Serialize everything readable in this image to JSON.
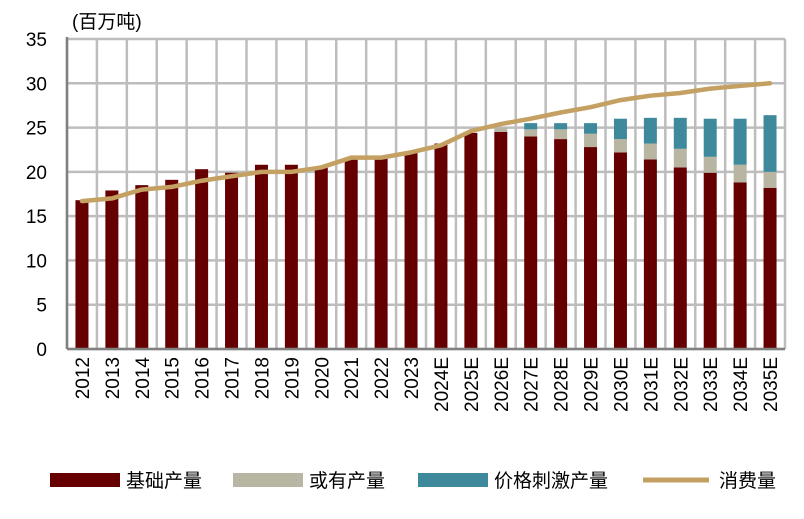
{
  "chart_data": {
    "type": "bar",
    "stacked": true,
    "unit_label": "(百万吨)",
    "categories": [
      "2012",
      "2013",
      "2014",
      "2015",
      "2016",
      "2017",
      "2018",
      "2019",
      "2020",
      "2021",
      "2022",
      "2023",
      "2024E",
      "2025E",
      "2026E",
      "2027E",
      "2028E",
      "2029E",
      "2030E",
      "2031E",
      "2032E",
      "2033E",
      "2034E",
      "2035E"
    ],
    "ylim": [
      0,
      35
    ],
    "yticks": [
      "0",
      "5",
      "10",
      "15",
      "20",
      "25",
      "30",
      "35"
    ],
    "grid": true,
    "legend_position": "bottom",
    "series": [
      {
        "name": "基础产量",
        "kind": "bar",
        "color": "#660000",
        "values": [
          16.8,
          17.9,
          18.5,
          19.1,
          20.3,
          19.9,
          20.8,
          20.8,
          20.6,
          21.5,
          21.5,
          22.2,
          23.2,
          24.4,
          24.5,
          24.0,
          23.7,
          22.8,
          22.2,
          21.4,
          20.5,
          19.9,
          18.8,
          18.2
        ]
      },
      {
        "name": "或有产量",
        "kind": "bar",
        "color": "#b8b5a2",
        "values": [
          0,
          0,
          0,
          0,
          0,
          0,
          0,
          0,
          0,
          0,
          0,
          0,
          0,
          0,
          0.5,
          0.8,
          1.1,
          1.5,
          1.5,
          1.8,
          2.1,
          1.8,
          2.0,
          1.8
        ]
      },
      {
        "name": "价格刺激产量",
        "kind": "bar",
        "color": "#3e8a9c",
        "values": [
          0,
          0,
          0,
          0,
          0,
          0,
          0,
          0,
          0,
          0,
          0,
          0,
          0,
          0,
          0,
          0.7,
          0.7,
          1.2,
          2.3,
          2.9,
          3.5,
          4.3,
          5.2,
          6.4
        ]
      },
      {
        "name": "消费量",
        "kind": "line",
        "color": "#c4a062",
        "values": [
          16.7,
          17.0,
          18.0,
          18.3,
          19.0,
          19.5,
          20.0,
          20.0,
          20.5,
          21.6,
          21.6,
          22.2,
          23.0,
          24.6,
          25.4,
          26.0,
          26.7,
          27.3,
          28.1,
          28.6,
          28.9,
          29.4,
          29.7,
          30.0
        ]
      }
    ]
  }
}
